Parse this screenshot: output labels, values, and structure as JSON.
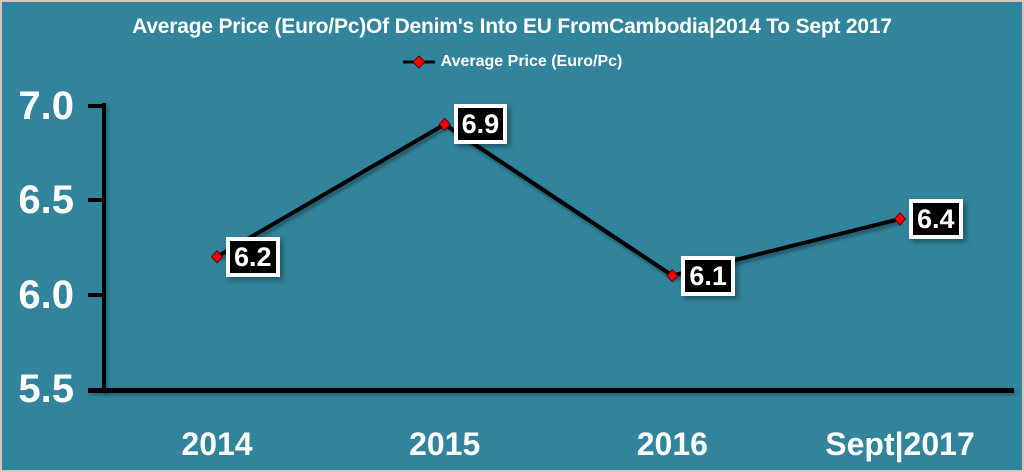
{
  "window": {
    "background_color": "#31849B",
    "frame_border_color": "#D8C6BE"
  },
  "chart_data": {
    "type": "line",
    "title": "Average Price (Euro/Pc)Of Denim's Into EU FromCambodia|2014 To Sept 2017",
    "legend": {
      "label": "Average Price (Euro/Pc)",
      "position": "top-center"
    },
    "categories": [
      "2014",
      "2015",
      "2016",
      "Sept|2017"
    ],
    "series": [
      {
        "name": "Average Price (Euro/Pc)",
        "values": [
          6.2,
          6.9,
          6.1,
          6.4
        ]
      }
    ],
    "data_labels": [
      "6.2",
      "6.9",
      "6.1",
      "6.4"
    ],
    "ylabel": "",
    "xlabel": "",
    "yticks": [
      "7.0",
      "6.5",
      "6.0",
      "5.5"
    ],
    "ylim": [
      5.5,
      7.0
    ],
    "grid": "off",
    "colors": {
      "line": "#000000",
      "marker_fill": "#FF0000",
      "marker_edge": "#5A0000",
      "axis": "#000000",
      "data_label_bg": "#000000",
      "data_label_border": "#FFFFFF",
      "text": "#FFFFFF"
    }
  }
}
